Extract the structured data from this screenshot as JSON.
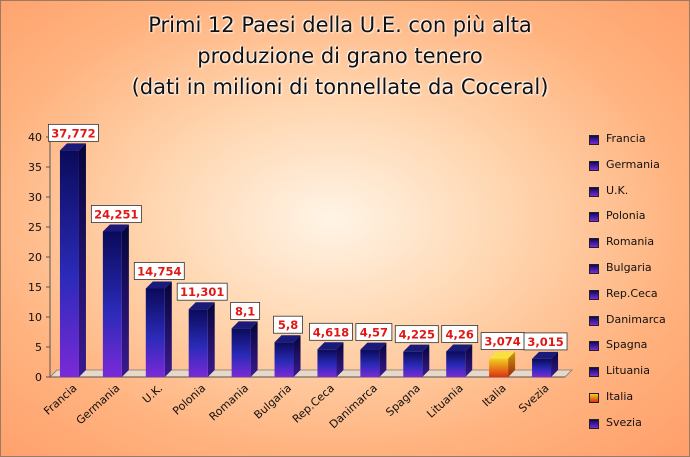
{
  "chart_data": {
    "type": "bar",
    "title_lines": [
      "Primi 12 Paesi della U.E. con più alta",
      "produzione di grano tenero",
      "(dati in milioni di tonnellate da Coceral)"
    ],
    "categories": [
      "Francia",
      "Germania",
      "U.K.",
      "Polonia",
      "Romania",
      "Bulgaria",
      "Rep.Ceca",
      "Danimarca",
      "Spagna",
      "Lituania",
      "Italia",
      "Svezia"
    ],
    "values": [
      37.772,
      24.251,
      14.754,
      11.301,
      8.1,
      5.8,
      4.618,
      4.57,
      4.225,
      4.26,
      3.074,
      3.015
    ],
    "value_labels": [
      "37,772",
      "24,251",
      "14,754",
      "11,301",
      "8,1",
      "5,8",
      "4,618",
      "4,57",
      "4,225",
      "4,26",
      "3,074",
      "3,015"
    ],
    "ylim": [
      0,
      40
    ],
    "yticks": [
      "0",
      "5",
      "10",
      "15",
      "20",
      "25",
      "30",
      "35",
      "40"
    ],
    "ytick_values": [
      0,
      5,
      10,
      15,
      20,
      25,
      30,
      35,
      40
    ],
    "legend_position": "right",
    "grid": false,
    "colors": {
      "default_top": "#0a0a5a",
      "default_mid": "#2a2ab8",
      "default_bottom": "#7a2ad8",
      "italia_top": "#f0d020",
      "italia_bottom": "#e03010",
      "label_text": "#e01818",
      "label_bg": "#ffffff"
    },
    "highlight_category": "Italia"
  }
}
